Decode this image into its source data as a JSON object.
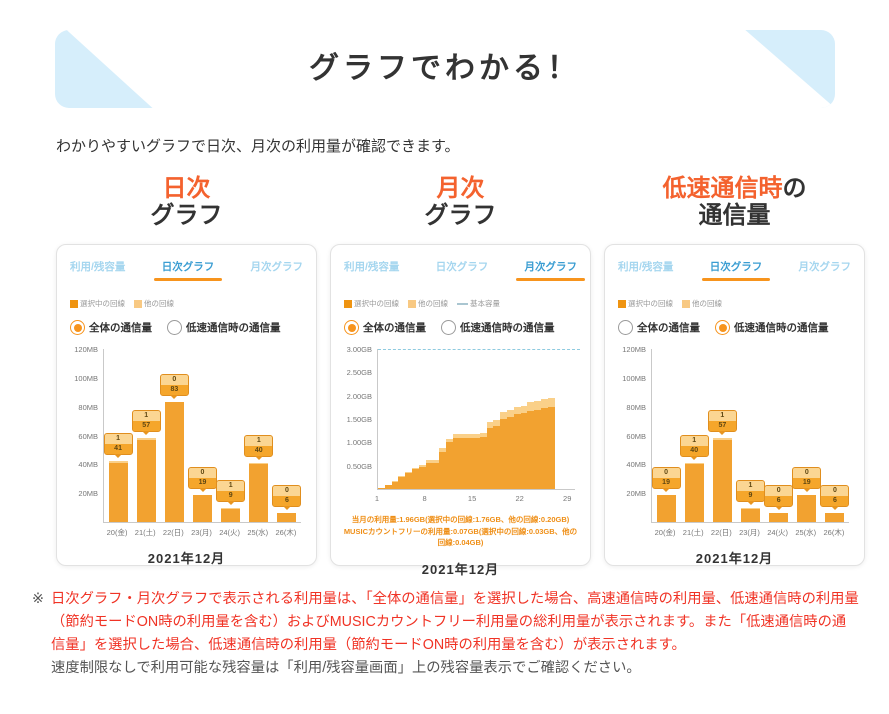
{
  "banner": {
    "title": "グラフでわかる！"
  },
  "intro": "わかりやすいグラフで日次、月次の利用量が確認できます。",
  "colors": {
    "banner_bg": "#d6eefb",
    "accent_orange": "#f4622e",
    "tab_active": "#3a9dd2",
    "tab_inactive": "#a5d6ef",
    "tab_underline": "#f7941d",
    "bar_selected": "#f2a230",
    "bar_other": "#fad089",
    "base_capacity_line": "#8fcbe0",
    "summary_orange": "#ef8f17",
    "footnote_red": "#f03325"
  },
  "panels": [
    {
      "heading": {
        "accent": "日次",
        "accent_suffix": "",
        "line2": "グラフ"
      },
      "tabs": [
        {
          "label": "利用/残容量",
          "active": false
        },
        {
          "label": "日次グラフ",
          "active": true
        },
        {
          "label": "月次グラフ",
          "active": false
        }
      ],
      "legend": [
        {
          "label": "選択中の回線",
          "swatch": "square",
          "color": "#ef9411"
        },
        {
          "label": "他の回線",
          "swatch": "square",
          "color": "#f8c983"
        }
      ],
      "radios": [
        {
          "label": "全体の通信量",
          "selected": true
        },
        {
          "label": "低速通信時の通信量",
          "selected": false
        }
      ],
      "chart": {
        "type": "bar",
        "unit": "MB",
        "ymax": 120,
        "yticks": [
          "120MB",
          "100MB",
          "80MB",
          "60MB",
          "40MB",
          "20MB"
        ],
        "categories": [
          "20(金)",
          "21(土)",
          "22(日)",
          "23(月)",
          "24(火)",
          "25(水)",
          "26(木)"
        ],
        "series": [
          {
            "name": "選択中の回線",
            "values": [
              41,
              57,
              83,
              19,
              9,
              40,
              6
            ]
          },
          {
            "name": "他の回線",
            "values": [
              1,
              1,
              0,
              0,
              1,
              1,
              0
            ]
          }
        ],
        "month_label": "2021年12月"
      }
    },
    {
      "heading": {
        "accent": "月次",
        "accent_suffix": "",
        "line2": "グラフ"
      },
      "tabs": [
        {
          "label": "利用/残容量",
          "active": false
        },
        {
          "label": "日次グラフ",
          "active": false
        },
        {
          "label": "月次グラフ",
          "active": true
        }
      ],
      "legend": [
        {
          "label": "選択中の回線",
          "swatch": "square",
          "color": "#ef9411"
        },
        {
          "label": "他の回線",
          "swatch": "square",
          "color": "#f8c983"
        },
        {
          "label": "基本容量",
          "swatch": "line",
          "color": "#aac6d1"
        }
      ],
      "radios": [
        {
          "label": "全体の通信量",
          "selected": true
        },
        {
          "label": "低速通信時の通信量",
          "selected": false
        }
      ],
      "chart": {
        "type": "area",
        "unit": "GB",
        "ymax": 3.0,
        "yticks": [
          "3.00GB",
          "2.50GB",
          "2.00GB",
          "1.50GB",
          "1.00GB",
          "0.50GB"
        ],
        "xticks": [
          1,
          8,
          15,
          22,
          29
        ],
        "x_days": 29,
        "base_capacity_gb": 3.0,
        "series": [
          {
            "name": "選択中の回線",
            "cumulative": [
              0.03,
              0.08,
              0.16,
              0.26,
              0.34,
              0.42,
              0.47,
              0.55,
              0.55,
              0.8,
              1.0,
              1.1,
              1.1,
              1.1,
              1.1,
              1.12,
              1.3,
              1.35,
              1.5,
              1.55,
              1.6,
              1.62,
              1.68,
              1.7,
              1.73,
              1.76
            ]
          },
          {
            "name": "他の回線",
            "cumulative": [
              0.0,
              0.0,
              0.01,
              0.01,
              0.02,
              0.02,
              0.05,
              0.07,
              0.07,
              0.07,
              0.08,
              0.08,
              0.08,
              0.08,
              0.08,
              0.08,
              0.13,
              0.13,
              0.15,
              0.15,
              0.16,
              0.16,
              0.18,
              0.18,
              0.19,
              0.2
            ]
          }
        ],
        "summary": [
          "当月の利用量:1.96GB(選択中の回線:1.76GB、他の回線:0.20GB)",
          "MUSICカウントフリーの利用量:0.07GB(選択中の回線:0.03GB、他の回線:0.04GB)"
        ],
        "month_label": "2021年12月"
      }
    },
    {
      "heading": {
        "accent": "低速通信時",
        "accent_suffix": "の",
        "line2": "通信量"
      },
      "tabs": [
        {
          "label": "利用/残容量",
          "active": false
        },
        {
          "label": "日次グラフ",
          "active": true
        },
        {
          "label": "月次グラフ",
          "active": false
        }
      ],
      "legend": [
        {
          "label": "選択中の回線",
          "swatch": "square",
          "color": "#ef9411"
        },
        {
          "label": "他の回線",
          "swatch": "square",
          "color": "#f8c983"
        }
      ],
      "radios": [
        {
          "label": "全体の通信量",
          "selected": false
        },
        {
          "label": "低速通信時の通信量",
          "selected": true
        }
      ],
      "chart": {
        "type": "bar",
        "unit": "MB",
        "ymax": 120,
        "yticks": [
          "120MB",
          "100MB",
          "80MB",
          "60MB",
          "40MB",
          "20MB"
        ],
        "categories": [
          "20(金)",
          "21(土)",
          "22(日)",
          "23(月)",
          "24(火)",
          "25(水)",
          "26(木)"
        ],
        "series": [
          {
            "name": "選択中の回線",
            "values": [
              19,
              40,
              57,
              9,
              6,
              19,
              6
            ]
          },
          {
            "name": "他の回線",
            "values": [
              0,
              1,
              1,
              1,
              0,
              0,
              0
            ]
          }
        ],
        "month_label": "2021年12月"
      }
    }
  ],
  "footnote": {
    "marker": "※",
    "red_text": "日次グラフ・月次グラフで表示される利用量は、「全体の通信量」を選択した場合、高速通信時の利用量、低速通信時の利用量（節約モードON時の利用量を含む）およびMUSICカウントフリー利用量の総利用量が表示されます。また「低速通信時の通信量」を選択した場合、低速通信時の利用量（節約モードON時の利用量を含む）が表示されます。",
    "gray_text": "速度制限なしで利用可能な残容量は「利用/残容量画面」上の残容量表示でご確認ください。"
  }
}
